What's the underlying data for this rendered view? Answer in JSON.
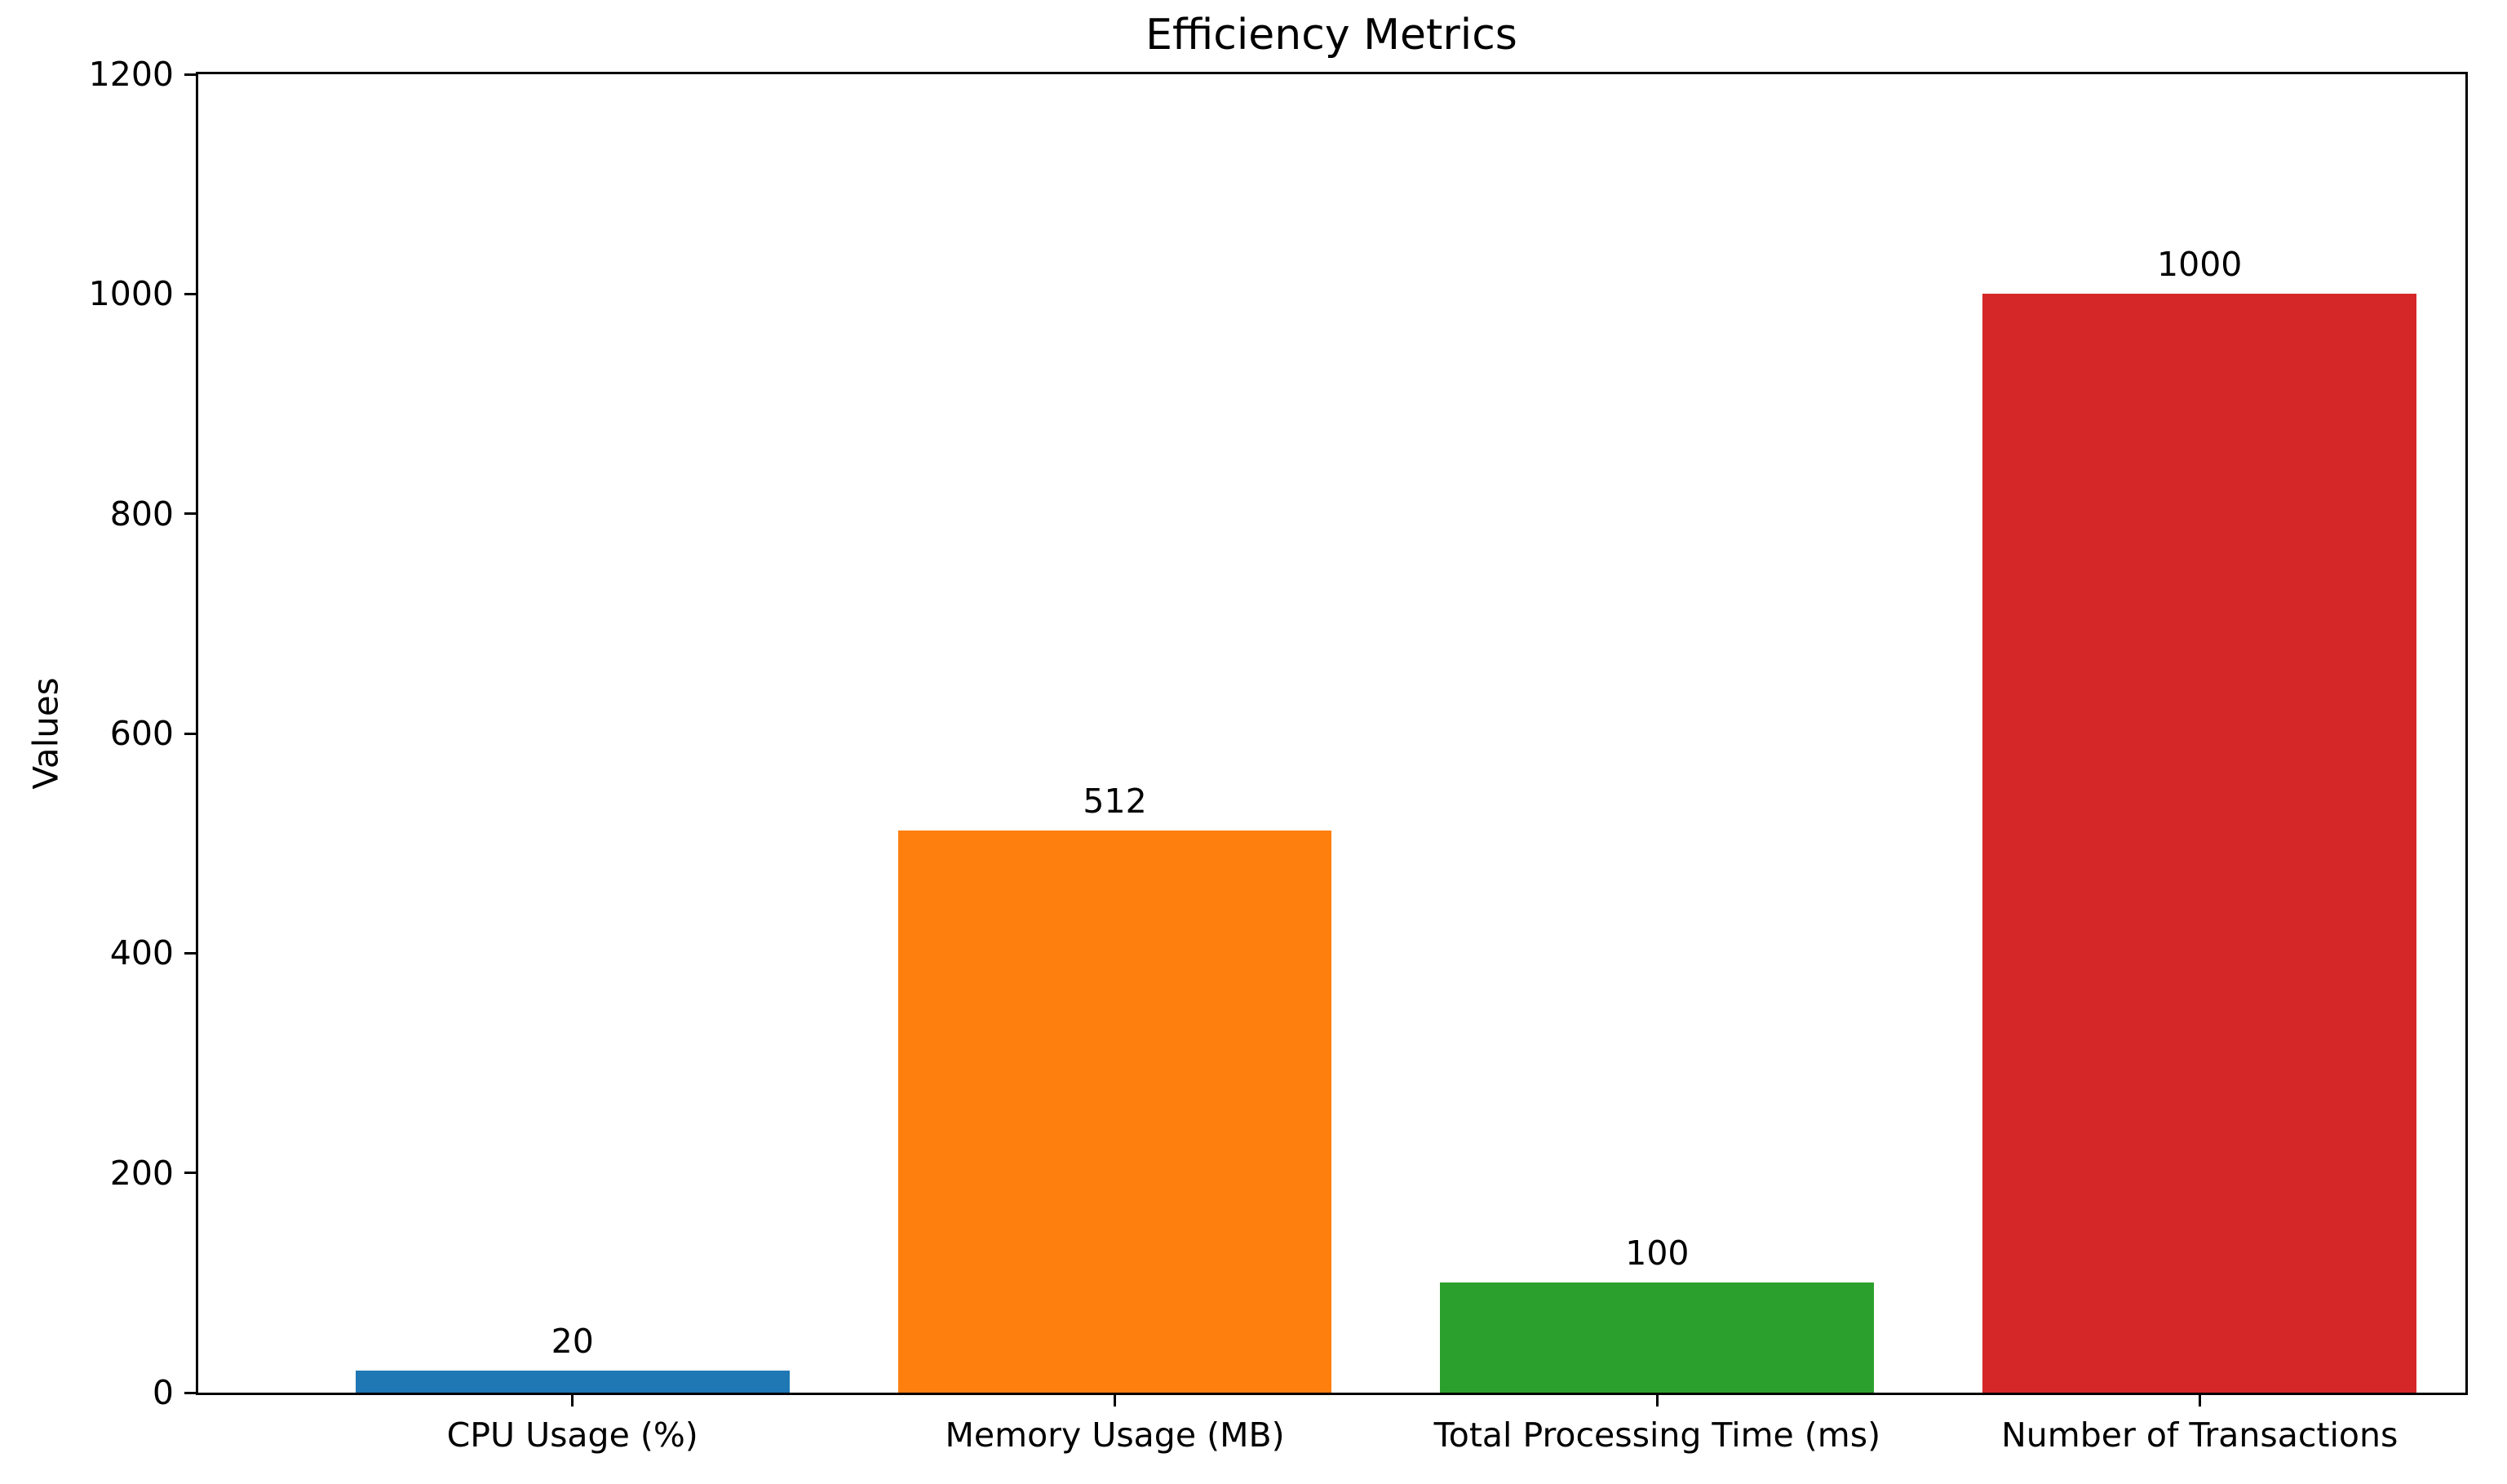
{
  "chart_data": {
    "type": "bar",
    "title": "Efficiency Metrics",
    "xlabel": "",
    "ylabel": "Values",
    "categories": [
      "CPU Usage (%)",
      "Memory Usage (MB)",
      "Total Processing Time (ms)",
      "Number of Transactions"
    ],
    "values": [
      20,
      512,
      100,
      1000
    ],
    "bar_labels": [
      "20",
      "512",
      "100",
      "1000"
    ],
    "bar_colors": [
      "#1f77b4",
      "#ff7f0e",
      "#2ca02c",
      "#d62728"
    ],
    "ylim": [
      0,
      1200
    ],
    "yticks": [
      0,
      200,
      400,
      600,
      800,
      1000,
      1200
    ],
    "grid": false,
    "legend": null,
    "spine_color": "#000000",
    "background_color": "#ffffff",
    "bar_width_fraction": 0.8
  }
}
